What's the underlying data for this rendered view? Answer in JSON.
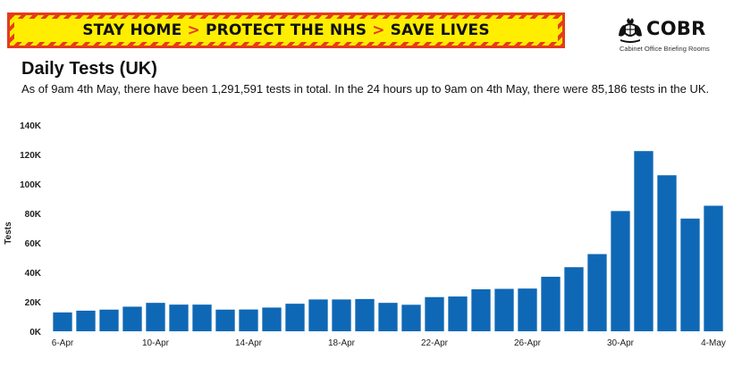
{
  "banner": {
    "part1": "STAY HOME",
    "part2": "PROTECT THE NHS",
    "part3": "SAVE LIVES",
    "separator": ">",
    "colors": {
      "background": "#ffee00",
      "stripe": "#e53b1d",
      "text": "#111111"
    }
  },
  "logo": {
    "name": "COBR",
    "subtitle": "Cabinet Office Briefing Rooms",
    "icon": "royal-crest-icon"
  },
  "header": {
    "title": "Daily Tests (UK)",
    "description": "As of 9am 4th May, there have been 1,291,591 tests in total. In the 24 hours up to 9am on 4th May, there were 85,186 tests in the UK."
  },
  "chart_data": {
    "type": "bar",
    "title": "Daily Tests (UK)",
    "xlabel": "",
    "ylabel": "Tests",
    "ylim": [
      0,
      140000
    ],
    "yticks": [
      0,
      20000,
      40000,
      60000,
      80000,
      100000,
      120000,
      140000
    ],
    "ytick_labels": [
      "0K",
      "20K",
      "40K",
      "60K",
      "80K",
      "100K",
      "120K",
      "140K"
    ],
    "categories": [
      "6-Apr",
      "7-Apr",
      "8-Apr",
      "9-Apr",
      "10-Apr",
      "11-Apr",
      "12-Apr",
      "13-Apr",
      "14-Apr",
      "15-Apr",
      "16-Apr",
      "17-Apr",
      "18-Apr",
      "19-Apr",
      "20-Apr",
      "21-Apr",
      "22-Apr",
      "23-Apr",
      "24-Apr",
      "25-Apr",
      "26-Apr",
      "27-Apr",
      "28-Apr",
      "29-Apr",
      "30-Apr",
      "1-May",
      "2-May",
      "3-May",
      "4-May"
    ],
    "xtick_labels": {
      "0": "6-Apr",
      "4": "10-Apr",
      "8": "14-Apr",
      "12": "18-Apr",
      "16": "22-Apr",
      "20": "26-Apr",
      "24": "30-Apr",
      "28": "4-May"
    },
    "values": [
      12800,
      14000,
      14700,
      16700,
      19300,
      18100,
      18100,
      14700,
      14800,
      16100,
      18700,
      21600,
      21600,
      21900,
      19300,
      18000,
      23200,
      23600,
      28500,
      28800,
      29000,
      37000,
      43500,
      52400,
      81600,
      122300,
      105900,
      76500,
      85200
    ],
    "color": "#0f68b5",
    "grid": false,
    "legend": "none"
  }
}
